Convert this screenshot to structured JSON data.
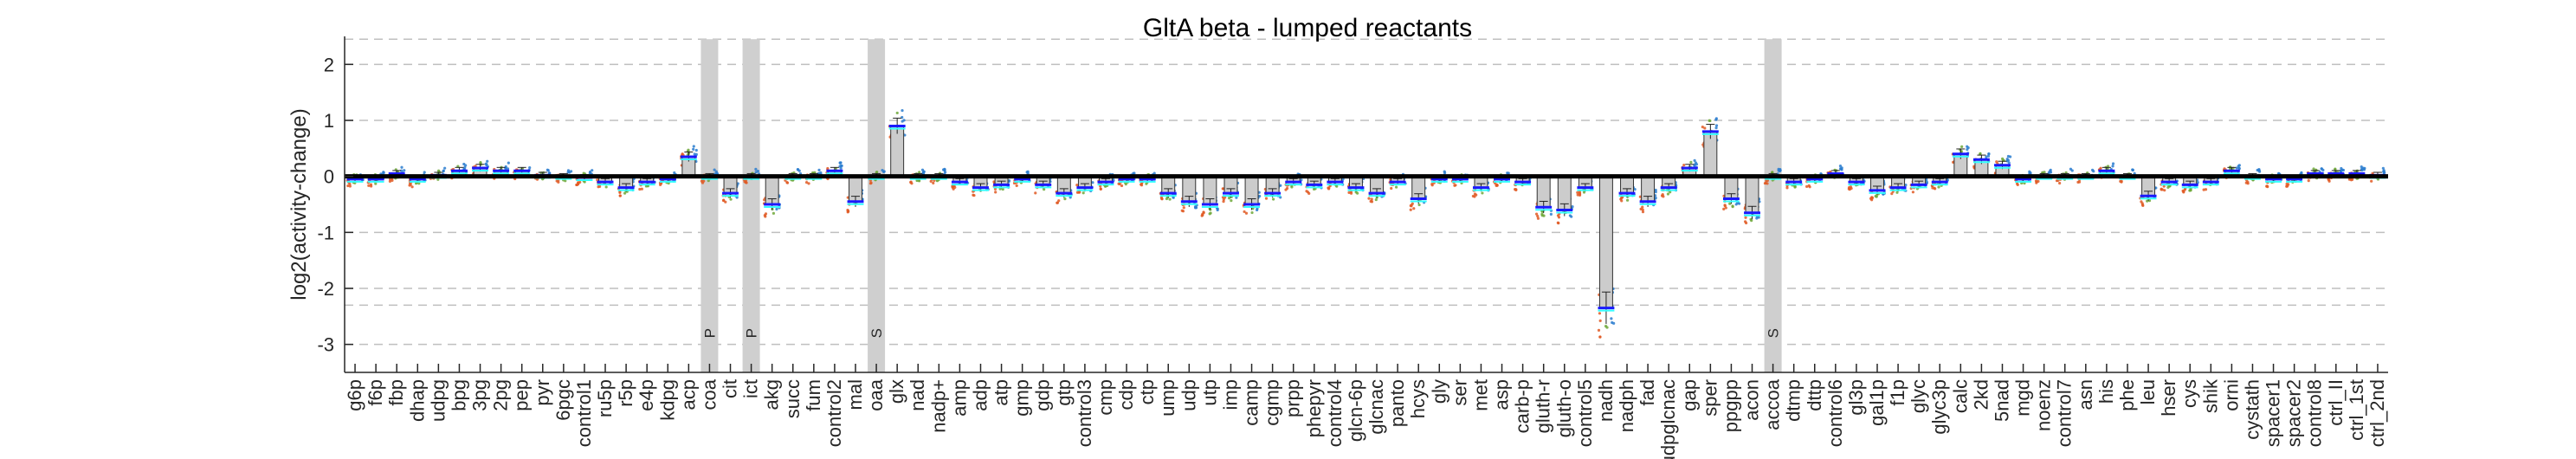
{
  "chart_data": {
    "type": "bar",
    "title": "GltA beta - lumped reactants",
    "xlabel": "",
    "ylabel": "log2(activity-change)",
    "ylim": [
      -3.5,
      2.5
    ],
    "yticks": [
      -3,
      -2,
      -1,
      0,
      1,
      2
    ],
    "grid": "y-dashed",
    "categories": [
      "g6p",
      "f6p",
      "fbp",
      "dhap",
      "udpg",
      "bpg",
      "3pg",
      "2pg",
      "pep",
      "pyr",
      "6pgc",
      "control1",
      "ru5p",
      "r5p",
      "e4p",
      "kdpg",
      "acp",
      "coa",
      "cit",
      "ict",
      "akg",
      "succ",
      "fum",
      "control2",
      "mal",
      "oaa",
      "glx",
      "nad",
      "nadp+",
      "amp",
      "adp",
      "atp",
      "gmp",
      "gdp",
      "gtp",
      "control3",
      "cmp",
      "cdp",
      "ctp",
      "ump",
      "udp",
      "utp",
      "imp",
      "camp",
      "cgmp",
      "prpp",
      "phepyr",
      "control4",
      "glcn-6p",
      "glcnac",
      "panto",
      "hcys",
      "gly",
      "ser",
      "met",
      "asp",
      "carb-p",
      "gluth-r",
      "gluth-o",
      "control5",
      "nadh",
      "nadph",
      "fad",
      "udpglcnac",
      "gap",
      "sper",
      "ppgpp",
      "acon",
      "accoa",
      "dtmp",
      "dttp",
      "control6",
      "gl3p",
      "gal1p",
      "f1p",
      "glyc",
      "glyc3p",
      "calc",
      "2kd",
      "5nad",
      "mgd",
      "noenz",
      "control7",
      "asn",
      "his",
      "phe",
      "leu",
      "hser",
      "cys",
      "shik",
      "orni",
      "cystath",
      "spacer1",
      "spacer2",
      "control8",
      "ctrl_II",
      "ctrl_1st",
      "ctrl_2nd"
    ],
    "values": [
      -0.05,
      -0.05,
      0.05,
      -0.05,
      0.02,
      0.1,
      0.15,
      0.1,
      0.1,
      0.02,
      0.0,
      -0.02,
      -0.1,
      -0.2,
      -0.1,
      -0.05,
      0.35,
      0.0,
      -0.3,
      0.0,
      -0.5,
      0.0,
      0.0,
      0.1,
      -0.45,
      0.0,
      0.9,
      0.0,
      0.0,
      -0.1,
      -0.2,
      -0.15,
      -0.05,
      -0.15,
      -0.3,
      -0.2,
      -0.1,
      -0.05,
      -0.05,
      -0.3,
      -0.45,
      -0.5,
      -0.3,
      -0.5,
      -0.3,
      -0.1,
      -0.15,
      -0.1,
      -0.2,
      -0.3,
      -0.1,
      -0.4,
      -0.05,
      -0.05,
      -0.2,
      -0.05,
      -0.1,
      -0.55,
      -0.6,
      -0.2,
      -2.35,
      -0.3,
      -0.45,
      -0.2,
      0.15,
      0.8,
      -0.4,
      -0.65,
      0.0,
      -0.1,
      -0.05,
      0.05,
      -0.1,
      -0.25,
      -0.2,
      -0.15,
      -0.1,
      0.4,
      0.3,
      0.2,
      -0.05,
      0.0,
      0.0,
      0.0,
      0.1,
      0.0,
      -0.35,
      -0.1,
      -0.15,
      -0.1,
      0.1,
      0.0,
      -0.05,
      -0.05,
      0.05,
      0.05,
      0.05,
      0.02
    ],
    "shaded_markers": [
      {
        "category": "coa",
        "label": "P"
      },
      {
        "category": "ict",
        "label": "P"
      },
      {
        "category": "oaa",
        "label": "S"
      },
      {
        "category": "accoa",
        "label": "S"
      }
    ],
    "colors": {
      "bar_fill": "#cccccc",
      "bar_edge": "#333333",
      "shade": "#cfcfcf",
      "zero_line": "#000000",
      "grid": "#bfbfbf",
      "mean_line": "#1a1aff",
      "highlight": "#33ffff",
      "series_orange": "#e05a24",
      "series_green": "#6fa83a",
      "series_blue": "#2a7dcf"
    }
  }
}
